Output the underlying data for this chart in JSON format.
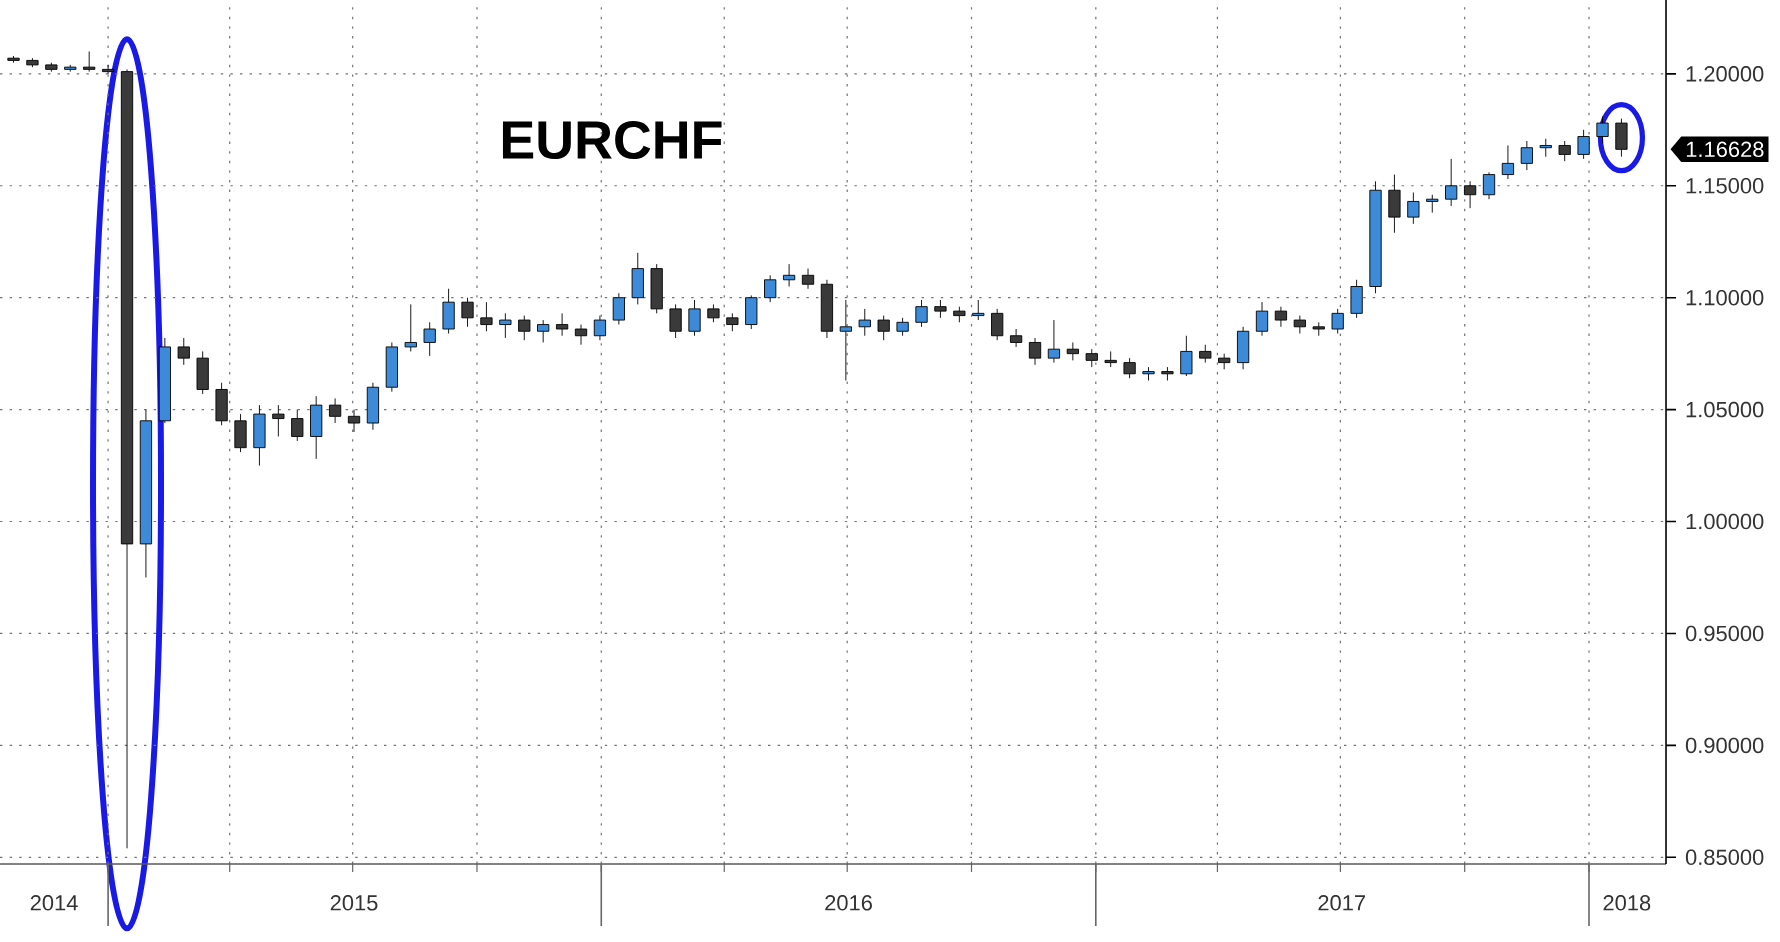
{
  "chart_data": {
    "type": "candlestick",
    "title": "EURCHF",
    "x": [
      "2014-10-23",
      "2014-11-06",
      "2014-11-20",
      "2014-12-04",
      "2014-12-18",
      "2015-01-01",
      "2015-01-15",
      "2015-01-29",
      "2015-02-12",
      "2015-02-26",
      "2015-03-12",
      "2015-03-26",
      "2015-04-09",
      "2015-04-23",
      "2015-05-07",
      "2015-05-21",
      "2015-06-04",
      "2015-06-18",
      "2015-07-02",
      "2015-07-16",
      "2015-07-30",
      "2015-08-13",
      "2015-08-27",
      "2015-09-10",
      "2015-09-24",
      "2015-10-08",
      "2015-10-22",
      "2015-11-05",
      "2015-11-19",
      "2015-12-03",
      "2015-12-17",
      "2015-12-31",
      "2016-01-14",
      "2016-01-28",
      "2016-02-11",
      "2016-02-25",
      "2016-03-10",
      "2016-03-24",
      "2016-04-07",
      "2016-04-21",
      "2016-05-05",
      "2016-05-19",
      "2016-06-02",
      "2016-06-16",
      "2016-06-30",
      "2016-07-14",
      "2016-07-28",
      "2016-08-11",
      "2016-08-25",
      "2016-09-08",
      "2016-09-22",
      "2016-10-06",
      "2016-10-20",
      "2016-11-03",
      "2016-11-17",
      "2016-12-01",
      "2016-12-15",
      "2016-12-29",
      "2017-01-12",
      "2017-01-26",
      "2017-02-09",
      "2017-02-23",
      "2017-03-09",
      "2017-03-23",
      "2017-04-06",
      "2017-04-20",
      "2017-05-04",
      "2017-05-18",
      "2017-06-01",
      "2017-06-15",
      "2017-06-29",
      "2017-07-13",
      "2017-07-27",
      "2017-08-10",
      "2017-08-24",
      "2017-09-07",
      "2017-09-21",
      "2017-10-05",
      "2017-10-19",
      "2017-11-02",
      "2017-11-16",
      "2017-11-30",
      "2017-12-14",
      "2017-12-28",
      "2018-01-11",
      "2018-01-25"
    ],
    "ohlc": [
      [
        1.207,
        1.208,
        1.205,
        1.206
      ],
      [
        1.206,
        1.207,
        1.203,
        1.204
      ],
      [
        1.204,
        1.205,
        1.201,
        1.202
      ],
      [
        1.202,
        1.204,
        1.201,
        1.203
      ],
      [
        1.203,
        1.21,
        1.201,
        1.202
      ],
      [
        1.202,
        1.204,
        1.2,
        1.201
      ],
      [
        1.201,
        1.202,
        0.854,
        0.99
      ],
      [
        0.99,
        1.05,
        0.975,
        1.045
      ],
      [
        1.045,
        1.082,
        1.044,
        1.078
      ],
      [
        1.078,
        1.082,
        1.07,
        1.073
      ],
      [
        1.073,
        1.076,
        1.057,
        1.059
      ],
      [
        1.059,
        1.062,
        1.043,
        1.045
      ],
      [
        1.045,
        1.048,
        1.031,
        1.033
      ],
      [
        1.033,
        1.052,
        1.025,
        1.048
      ],
      [
        1.048,
        1.052,
        1.038,
        1.046
      ],
      [
        1.046,
        1.05,
        1.036,
        1.038
      ],
      [
        1.038,
        1.056,
        1.028,
        1.052
      ],
      [
        1.052,
        1.055,
        1.044,
        1.047
      ],
      [
        1.047,
        1.05,
        1.04,
        1.044
      ],
      [
        1.044,
        1.062,
        1.041,
        1.06
      ],
      [
        1.06,
        1.08,
        1.058,
        1.078
      ],
      [
        1.078,
        1.097,
        1.076,
        1.08
      ],
      [
        1.08,
        1.089,
        1.074,
        1.086
      ],
      [
        1.086,
        1.104,
        1.084,
        1.098
      ],
      [
        1.098,
        1.1,
        1.087,
        1.091
      ],
      [
        1.091,
        1.098,
        1.085,
        1.088
      ],
      [
        1.088,
        1.093,
        1.082,
        1.09
      ],
      [
        1.09,
        1.092,
        1.081,
        1.085
      ],
      [
        1.085,
        1.09,
        1.08,
        1.088
      ],
      [
        1.088,
        1.093,
        1.083,
        1.086
      ],
      [
        1.086,
        1.088,
        1.079,
        1.083
      ],
      [
        1.083,
        1.092,
        1.081,
        1.09
      ],
      [
        1.09,
        1.102,
        1.088,
        1.1
      ],
      [
        1.1,
        1.12,
        1.097,
        1.113
      ],
      [
        1.113,
        1.115,
        1.093,
        1.095
      ],
      [
        1.095,
        1.097,
        1.082,
        1.085
      ],
      [
        1.085,
        1.099,
        1.083,
        1.095
      ],
      [
        1.095,
        1.097,
        1.089,
        1.091
      ],
      [
        1.091,
        1.093,
        1.085,
        1.088
      ],
      [
        1.088,
        1.101,
        1.086,
        1.1
      ],
      [
        1.1,
        1.11,
        1.098,
        1.108
      ],
      [
        1.108,
        1.115,
        1.105,
        1.11
      ],
      [
        1.11,
        1.113,
        1.104,
        1.106
      ],
      [
        1.106,
        1.108,
        1.082,
        1.085
      ],
      [
        1.085,
        1.099,
        1.063,
        1.087
      ],
      [
        1.087,
        1.095,
        1.083,
        1.09
      ],
      [
        1.09,
        1.092,
        1.081,
        1.085
      ],
      [
        1.085,
        1.091,
        1.083,
        1.089
      ],
      [
        1.089,
        1.099,
        1.087,
        1.096
      ],
      [
        1.096,
        1.099,
        1.091,
        1.094
      ],
      [
        1.094,
        1.096,
        1.089,
        1.092
      ],
      [
        1.092,
        1.099,
        1.09,
        1.093
      ],
      [
        1.093,
        1.095,
        1.081,
        1.083
      ],
      [
        1.083,
        1.086,
        1.078,
        1.08
      ],
      [
        1.08,
        1.082,
        1.07,
        1.073
      ],
      [
        1.073,
        1.09,
        1.071,
        1.077
      ],
      [
        1.077,
        1.08,
        1.072,
        1.075
      ],
      [
        1.075,
        1.077,
        1.069,
        1.072
      ],
      [
        1.072,
        1.076,
        1.069,
        1.071
      ],
      [
        1.071,
        1.073,
        1.064,
        1.066
      ],
      [
        1.066,
        1.069,
        1.063,
        1.067
      ],
      [
        1.067,
        1.069,
        1.063,
        1.066
      ],
      [
        1.066,
        1.083,
        1.065,
        1.076
      ],
      [
        1.076,
        1.079,
        1.071,
        1.073
      ],
      [
        1.073,
        1.075,
        1.068,
        1.071
      ],
      [
        1.071,
        1.087,
        1.068,
        1.085
      ],
      [
        1.085,
        1.098,
        1.083,
        1.094
      ],
      [
        1.094,
        1.096,
        1.087,
        1.09
      ],
      [
        1.09,
        1.092,
        1.084,
        1.087
      ],
      [
        1.087,
        1.089,
        1.083,
        1.086
      ],
      [
        1.086,
        1.095,
        1.084,
        1.093
      ],
      [
        1.093,
        1.108,
        1.091,
        1.105
      ],
      [
        1.105,
        1.152,
        1.102,
        1.148
      ],
      [
        1.148,
        1.155,
        1.129,
        1.136
      ],
      [
        1.136,
        1.147,
        1.133,
        1.143
      ],
      [
        1.143,
        1.146,
        1.138,
        1.144
      ],
      [
        1.144,
        1.162,
        1.141,
        1.15
      ],
      [
        1.15,
        1.152,
        1.14,
        1.146
      ],
      [
        1.146,
        1.156,
        1.144,
        1.155
      ],
      [
        1.155,
        1.168,
        1.153,
        1.16
      ],
      [
        1.16,
        1.17,
        1.157,
        1.167
      ],
      [
        1.167,
        1.171,
        1.163,
        1.168
      ],
      [
        1.168,
        1.17,
        1.161,
        1.164
      ],
      [
        1.164,
        1.175,
        1.162,
        1.172
      ],
      [
        1.172,
        1.181,
        1.169,
        1.178
      ],
      [
        1.178,
        1.18,
        1.163,
        1.16628
      ]
    ],
    "colors": [
      "#3a3a3a",
      "#3a3a3a",
      "#3a3a3a",
      "#3c8ad8",
      "#3a3a3a",
      "#3a3a3a",
      "#3a3a3a",
      "#3c8ad8",
      "#3c8ad8",
      "#3a3a3a",
      "#3a3a3a",
      "#3a3a3a",
      "#3a3a3a",
      "#3c8ad8",
      "#3a3a3a",
      "#3a3a3a",
      "#3c8ad8",
      "#3a3a3a",
      "#3a3a3a",
      "#3c8ad8",
      "#3c8ad8",
      "#3c8ad8",
      "#3c8ad8",
      "#3c8ad8",
      "#3a3a3a",
      "#3a3a3a",
      "#3c8ad8",
      "#3a3a3a",
      "#3c8ad8",
      "#3a3a3a",
      "#3a3a3a",
      "#3c8ad8",
      "#3c8ad8",
      "#3c8ad8",
      "#3a3a3a",
      "#3a3a3a",
      "#3c8ad8",
      "#3a3a3a",
      "#3a3a3a",
      "#3c8ad8",
      "#3c8ad8",
      "#3c8ad8",
      "#3a3a3a",
      "#3a3a3a",
      "#3c8ad8",
      "#3c8ad8",
      "#3a3a3a",
      "#3c8ad8",
      "#3c8ad8",
      "#3a3a3a",
      "#3a3a3a",
      "#3c8ad8",
      "#3a3a3a",
      "#3a3a3a",
      "#3a3a3a",
      "#3c8ad8",
      "#3a3a3a",
      "#3a3a3a",
      "#3a3a3a",
      "#3a3a3a",
      "#3c8ad8",
      "#3a3a3a",
      "#3c8ad8",
      "#3a3a3a",
      "#3a3a3a",
      "#3c8ad8",
      "#3c8ad8",
      "#3a3a3a",
      "#3a3a3a",
      "#3a3a3a",
      "#3c8ad8",
      "#3c8ad8",
      "#3c8ad8",
      "#3a3a3a",
      "#3c8ad8",
      "#3c8ad8",
      "#3c8ad8",
      "#3a3a3a",
      "#3c8ad8",
      "#3c8ad8",
      "#3c8ad8",
      "#3c8ad8",
      "#3a3a3a",
      "#3c8ad8",
      "#3c8ad8",
      "#3a3a3a"
    ],
    "xlim": [
      "2014-10-13",
      "2018-02-27"
    ],
    "xticks": [
      {
        "value": "2014-11-22",
        "label": "2014"
      },
      {
        "value": "2015-01-01",
        "label": null
      },
      {
        "value": "2015-04-01",
        "label": null
      },
      {
        "value": "2015-07-01",
        "label": null
      },
      {
        "value": "2015-07-02",
        "label": "2015"
      },
      {
        "value": "2015-10-01",
        "label": null
      },
      {
        "value": "2016-01-01",
        "label": null
      },
      {
        "value": "2016-04-01",
        "label": null
      },
      {
        "value": "2016-07-01",
        "label": null
      },
      {
        "value": "2016-07-02",
        "label": "2016"
      },
      {
        "value": "2016-10-01",
        "label": null
      },
      {
        "value": "2017-01-01",
        "label": null
      },
      {
        "value": "2017-04-01",
        "label": null
      },
      {
        "value": "2017-07-01",
        "label": null
      },
      {
        "value": "2017-07-02",
        "label": "2017"
      },
      {
        "value": "2017-10-01",
        "label": null
      },
      {
        "value": "2018-01-01",
        "label": null
      },
      {
        "value": "2018-01-29",
        "label": "2018"
      }
    ],
    "ylim": [
      0.847,
      1.233
    ],
    "yticks": [
      {
        "value": 0.85,
        "label": "0.85000"
      },
      {
        "value": 0.9,
        "label": "0.90000"
      },
      {
        "value": 0.95,
        "label": "0.95000"
      },
      {
        "value": 1.0,
        "label": "1.00000"
      },
      {
        "value": 1.05,
        "label": "1.05000"
      },
      {
        "value": 1.1,
        "label": "1.10000"
      },
      {
        "value": 1.15,
        "label": "1.15000"
      },
      {
        "value": 1.2,
        "label": "1.20000"
      }
    ],
    "grid": true,
    "annotations": [
      "1.16628"
    ]
  }
}
